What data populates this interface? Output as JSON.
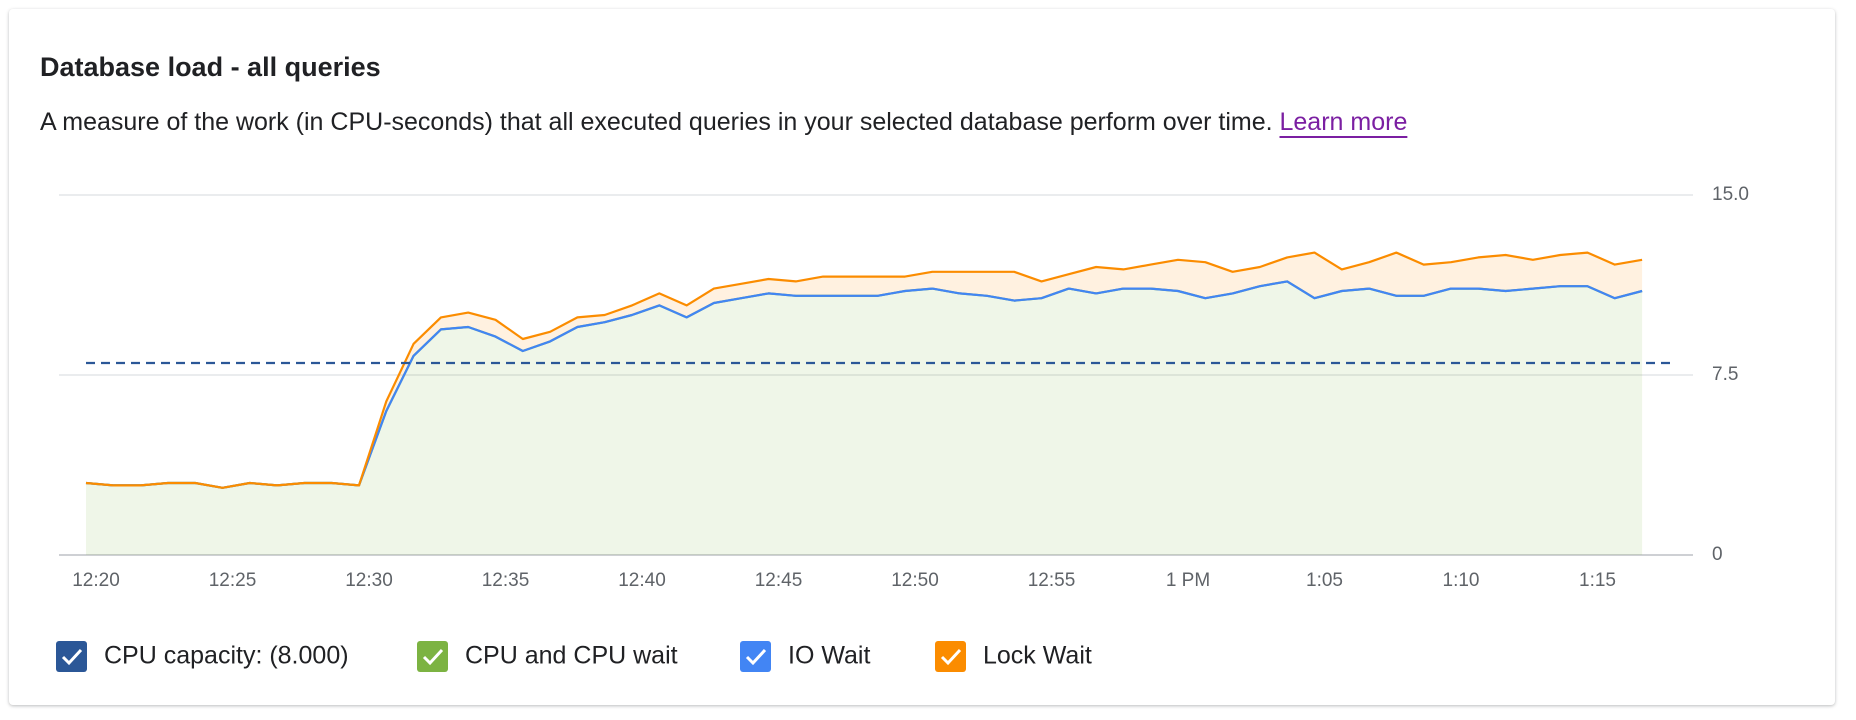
{
  "chart_data": {
    "type": "stacked-area",
    "title": "Database load - all queries",
    "subtitle": "A measure of the work (in CPU-seconds) that all executed queries in your selected database perform over time.",
    "link": "Learn more",
    "categories": [
      "12:20",
      null,
      null,
      null,
      null,
      "12:25",
      null,
      null,
      null,
      null,
      "12:30",
      null,
      null,
      null,
      null,
      "12:35",
      null,
      null,
      null,
      null,
      "12:40",
      null,
      null,
      null,
      null,
      "12:45",
      null,
      null,
      null,
      null,
      "12:50",
      null,
      null,
      null,
      null,
      "12:55",
      null,
      null,
      null,
      null,
      "1 PM",
      null,
      null,
      null,
      null,
      "1:05",
      null,
      null,
      null,
      null,
      "1:10",
      null,
      null,
      null,
      null,
      "1:15",
      null,
      null
    ],
    "ylim": [
      0,
      15
    ],
    "yticks": [
      0,
      7.5,
      {
        "value": 15,
        "label": "15.0"
      }
    ],
    "grid": true,
    "capacity": {
      "name": "CPU capacity: (8.000)",
      "value": 8,
      "color": "#2b5797"
    },
    "series": [
      {
        "name": "CPU and CPU wait",
        "color": "#7cb342",
        "values": [
          3.0,
          2.9,
          2.9,
          3.0,
          3.0,
          2.8,
          3.0,
          2.9,
          3.0,
          3.0,
          2.9,
          6.0,
          8.3,
          9.4,
          9.5,
          9.1,
          8.5,
          8.9,
          9.5,
          9.7,
          10.0,
          10.4,
          9.9,
          10.5,
          10.7,
          10.9,
          10.8,
          10.8,
          10.8,
          10.8,
          11.0,
          11.1,
          10.9,
          10.8,
          10.6,
          10.7,
          11.1,
          10.9,
          11.1,
          11.1,
          11.0,
          10.7,
          10.9,
          11.2,
          11.4,
          10.7,
          11.0,
          11.1,
          10.8,
          10.8,
          11.1,
          11.1,
          11.0,
          11.1,
          11.2,
          11.2,
          10.7,
          11.0
        ]
      },
      {
        "name": "IO Wait",
        "color": "#4285f4",
        "values": [
          0,
          0,
          0,
          0,
          0,
          0,
          0,
          0,
          0,
          0,
          0,
          0,
          0,
          0,
          0,
          0,
          0,
          0,
          0,
          0,
          0,
          0,
          0,
          0,
          0,
          0,
          0,
          0,
          0,
          0,
          0,
          0,
          0,
          0,
          0,
          0,
          0,
          0,
          0,
          0,
          0,
          0,
          0,
          0,
          0,
          0,
          0,
          0,
          0,
          0,
          0,
          0,
          0,
          0,
          0,
          0,
          0,
          0
        ]
      },
      {
        "name": "Lock Wait",
        "color": "#fb8c00",
        "values": [
          0,
          0,
          0,
          0,
          0,
          0,
          0,
          0,
          0,
          0,
          0,
          0.4,
          0.5,
          0.5,
          0.6,
          0.7,
          0.5,
          0.4,
          0.4,
          0.3,
          0.4,
          0.5,
          0.5,
          0.6,
          0.6,
          0.6,
          0.6,
          0.8,
          0.8,
          0.8,
          0.6,
          0.7,
          0.9,
          1.0,
          1.2,
          0.7,
          0.6,
          1.1,
          0.8,
          1.0,
          1.3,
          1.5,
          0.9,
          0.8,
          1.0,
          1.9,
          0.9,
          1.1,
          1.8,
          1.3,
          1.1,
          1.3,
          1.5,
          1.2,
          1.3,
          1.4,
          1.4,
          1.3
        ]
      }
    ]
  }
}
